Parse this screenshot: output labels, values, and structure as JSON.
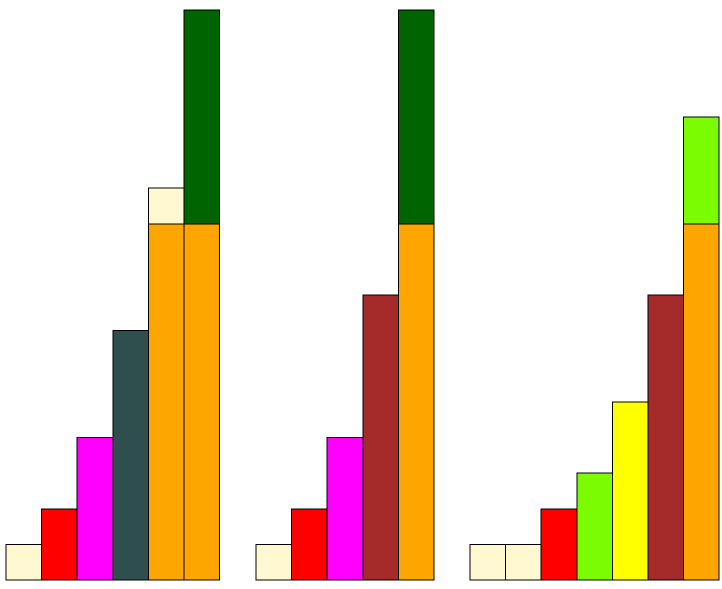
{
  "chart_data": [
    {
      "type": "bar",
      "stacked": true,
      "axes_visible": false,
      "grid": false,
      "title": "",
      "xlabel": "",
      "ylabel": "",
      "ylim": [
        0,
        16
      ],
      "bars": [
        {
          "segments": [
            {
              "value": 1,
              "color": "#FFF8D0"
            }
          ]
        },
        {
          "segments": [
            {
              "value": 2,
              "color": "#FF0000"
            }
          ]
        },
        {
          "segments": [
            {
              "value": 4,
              "color": "#FF00FF"
            }
          ]
        },
        {
          "segments": [
            {
              "value": 7,
              "color": "#2F4F4F"
            }
          ]
        },
        {
          "segments": [
            {
              "value": 10,
              "color": "#FFA500"
            },
            {
              "value": 1,
              "color": "#FFF8D0"
            }
          ]
        },
        {
          "segments": [
            {
              "value": 10,
              "color": "#FFA500"
            },
            {
              "value": 6,
              "color": "#006400"
            }
          ]
        }
      ]
    },
    {
      "type": "bar",
      "stacked": true,
      "axes_visible": false,
      "grid": false,
      "title": "",
      "xlabel": "",
      "ylabel": "",
      "ylim": [
        0,
        16
      ],
      "bars": [
        {
          "segments": [
            {
              "value": 1,
              "color": "#FFF8D0"
            }
          ]
        },
        {
          "segments": [
            {
              "value": 2,
              "color": "#FF0000"
            }
          ]
        },
        {
          "segments": [
            {
              "value": 4,
              "color": "#FF00FF"
            }
          ]
        },
        {
          "segments": [
            {
              "value": 8,
              "color": "#A52A2A"
            }
          ]
        },
        {
          "segments": [
            {
              "value": 10,
              "color": "#FFA500"
            },
            {
              "value": 6,
              "color": "#006400"
            }
          ]
        }
      ]
    },
    {
      "type": "bar",
      "stacked": true,
      "axes_visible": false,
      "grid": false,
      "title": "",
      "xlabel": "",
      "ylabel": "",
      "ylim": [
        0,
        16
      ],
      "bars": [
        {
          "segments": [
            {
              "value": 1,
              "color": "#FFF8D0"
            }
          ]
        },
        {
          "segments": [
            {
              "value": 1,
              "color": "#FFF8D0"
            }
          ]
        },
        {
          "segments": [
            {
              "value": 2,
              "color": "#FF0000"
            }
          ]
        },
        {
          "segments": [
            {
              "value": 3,
              "color": "#7CFC00"
            }
          ]
        },
        {
          "segments": [
            {
              "value": 5,
              "color": "#FFFF00"
            }
          ]
        },
        {
          "segments": [
            {
              "value": 8,
              "color": "#A52A2A"
            }
          ]
        },
        {
          "segments": [
            {
              "value": 10,
              "color": "#FFA500"
            },
            {
              "value": 3,
              "color": "#7CFC00"
            }
          ]
        }
      ]
    }
  ]
}
